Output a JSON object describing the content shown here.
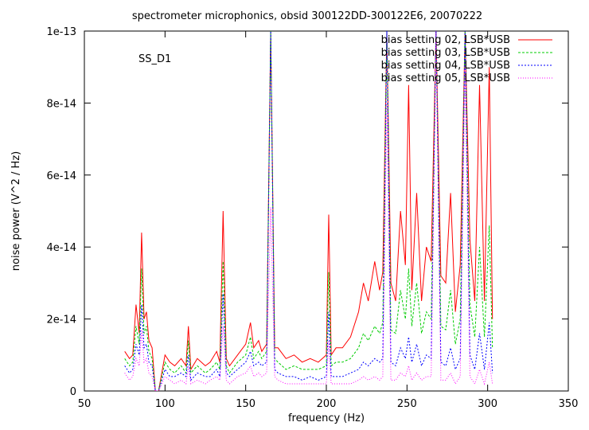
{
  "chart_data": {
    "type": "line",
    "title": "spectrometer microphonics, obsid 300122DD-300122E6, 20070222",
    "xlabel": "frequency (Hz)",
    "ylabel": "noise power (V^2 / Hz)",
    "annotation": "SS_D1",
    "xlim": [
      50,
      350
    ],
    "ylim": [
      0,
      1e-13
    ],
    "xticks": [
      50,
      100,
      150,
      200,
      250,
      300,
      350
    ],
    "xtick_labels": [
      "50",
      "100",
      "150",
      "200",
      "250",
      "300",
      "350"
    ],
    "yticks": [
      0,
      2e-14,
      4e-14,
      6e-14,
      8e-14,
      1e-13
    ],
    "ytick_labels": [
      "0",
      "2e-14",
      "4e-14",
      "6e-14",
      "8e-14",
      "1e-13"
    ],
    "grid": false,
    "legend_position": "top-right",
    "x": [
      75,
      78,
      80,
      82,
      84,
      85.5,
      87,
      88.5,
      90,
      92,
      94,
      96,
      100,
      103,
      106,
      110,
      113,
      114.5,
      116,
      120,
      125,
      128,
      132,
      134,
      136,
      138,
      140,
      145,
      150,
      153,
      155,
      158,
      160,
      163,
      165.5,
      168,
      170,
      175,
      180,
      185,
      190,
      195,
      200,
      201.5,
      203,
      206,
      210,
      215,
      220,
      223,
      226,
      230,
      233,
      235,
      237.5,
      240,
      243,
      246,
      249,
      251,
      253,
      256,
      259,
      262,
      265,
      268,
      271,
      274,
      277,
      280,
      283,
      286,
      289,
      292,
      295,
      298,
      301,
      303
    ],
    "series": [
      {
        "name": "bias setting 02, LSB*USB",
        "color": "#ff0000",
        "dash": "",
        "values": [
          1.1e-14,
          9e-15,
          1e-14,
          2.4e-14,
          1.6e-14,
          4.4e-14,
          2e-14,
          2.2e-14,
          1.4e-14,
          1.2e-14,
          0.0,
          0.0,
          1e-14,
          8e-15,
          7e-15,
          9e-15,
          7e-15,
          1.8e-14,
          6e-15,
          9e-15,
          7e-15,
          8e-15,
          1.1e-14,
          8e-15,
          5e-14,
          9e-15,
          7e-15,
          1e-14,
          1.3e-14,
          1.9e-14,
          1.2e-14,
          1.4e-14,
          1.1e-14,
          1.3e-14,
          1e-13,
          1.2e-14,
          1.2e-14,
          9e-15,
          1e-14,
          8e-15,
          9e-15,
          8e-15,
          1e-14,
          4.9e-14,
          1e-14,
          1.2e-14,
          1.2e-14,
          1.5e-14,
          2.2e-14,
          3e-14,
          2.5e-14,
          3.6e-14,
          2.8e-14,
          3.3e-14,
          1e-13,
          3e-14,
          2.5e-14,
          5e-14,
          3.5e-14,
          8.5e-14,
          2.8e-14,
          5.5e-14,
          2.5e-14,
          4e-14,
          3.6e-14,
          1e-13,
          3.2e-14,
          3e-14,
          5.5e-14,
          2.2e-14,
          3.5e-14,
          1e-13,
          4.2e-14,
          2.5e-14,
          8.5e-14,
          2.5e-14,
          9e-14,
          2e-14
        ]
      },
      {
        "name": "bias setting 03, LSB*USB",
        "color": "#00cc00",
        "dash": "3,2",
        "values": [
          9e-15,
          7e-15,
          8e-15,
          1.8e-14,
          1.3e-14,
          3.4e-14,
          1.6e-14,
          1.8e-14,
          1.1e-14,
          9e-15,
          0.0,
          0.0,
          8e-15,
          6e-15,
          5e-15,
          7e-15,
          5e-15,
          1.4e-14,
          5e-15,
          7e-15,
          5e-15,
          6e-15,
          8e-15,
          6e-15,
          3.6e-14,
          7e-15,
          5e-15,
          8e-15,
          1e-14,
          1.5e-14,
          9e-15,
          1.1e-14,
          9e-15,
          1.1e-14,
          1e-13,
          9e-15,
          8e-15,
          6e-15,
          7e-15,
          6e-15,
          6e-15,
          6e-15,
          7e-15,
          3.3e-14,
          7e-15,
          8e-15,
          8e-15,
          9e-15,
          1.2e-14,
          1.6e-14,
          1.4e-14,
          1.8e-14,
          1.6e-14,
          1.9e-14,
          1e-13,
          1.7e-14,
          1.6e-14,
          2.8e-14,
          2e-14,
          3.4e-14,
          1.8e-14,
          3e-14,
          1.6e-14,
          2.2e-14,
          2e-14,
          1e-13,
          1.8e-14,
          1.7e-14,
          2.8e-14,
          1.3e-14,
          2e-14,
          1e-13,
          2.4e-14,
          1.5e-14,
          4e-14,
          1.5e-14,
          4.6e-14,
          1.2e-14
        ]
      },
      {
        "name": "bias setting 04, LSB*USB",
        "color": "#0000ff",
        "dash": "2,2",
        "values": [
          7e-15,
          5e-15,
          6e-15,
          1.3e-14,
          1e-14,
          2.4e-14,
          1.2e-14,
          1.3e-14,
          8e-15,
          7e-15,
          0.0,
          0.0,
          6e-15,
          4e-15,
          4e-15,
          5e-15,
          4e-15,
          1e-14,
          3e-15,
          5e-15,
          4e-15,
          4e-15,
          6e-15,
          4e-15,
          2.7e-14,
          5e-15,
          4e-15,
          6e-15,
          8e-15,
          1.1e-14,
          7e-15,
          8e-15,
          7e-15,
          8e-15,
          1e-13,
          6e-15,
          5e-15,
          4e-15,
          4e-15,
          3e-15,
          4e-15,
          3e-15,
          4e-15,
          2.2e-14,
          4e-15,
          4e-15,
          4e-15,
          5e-15,
          6e-15,
          8e-15,
          7e-15,
          9e-15,
          8e-15,
          9e-15,
          1e-13,
          8e-15,
          7e-15,
          1.2e-14,
          9e-15,
          1.5e-14,
          8e-15,
          1.3e-14,
          7e-15,
          1e-14,
          9e-15,
          1e-13,
          8e-15,
          7e-15,
          1.2e-14,
          6e-15,
          9e-15,
          1e-13,
          1e-14,
          6e-15,
          1.6e-14,
          6e-15,
          1.9e-14,
          5e-15
        ]
      },
      {
        "name": "bias setting 05, LSB*USB",
        "color": "#ff00ff",
        "dash": "1,2",
        "values": [
          5e-15,
          3e-15,
          4e-15,
          9e-15,
          7e-15,
          1.7e-14,
          8e-15,
          9e-15,
          5e-15,
          4e-15,
          0.0,
          0.0,
          4e-15,
          3e-15,
          2e-15,
          3e-15,
          2e-15,
          7e-15,
          2e-15,
          3e-15,
          2e-15,
          3e-15,
          4e-15,
          3e-15,
          1.8e-14,
          3e-15,
          2e-15,
          4e-15,
          5e-15,
          7e-15,
          4e-15,
          5e-15,
          4e-15,
          5e-15,
          5.1e-14,
          4e-15,
          3e-15,
          2e-15,
          2e-15,
          2e-15,
          2e-15,
          2e-15,
          2e-15,
          1.4e-14,
          2e-15,
          2e-15,
          2e-15,
          2e-15,
          3e-15,
          4e-15,
          3e-15,
          4e-15,
          3e-15,
          4e-15,
          8e-14,
          3e-15,
          3e-15,
          5e-15,
          4e-15,
          7e-15,
          3e-15,
          5e-15,
          3e-15,
          4e-15,
          4e-15,
          1e-13,
          3e-15,
          3e-15,
          5e-15,
          2e-15,
          4e-15,
          9e-14,
          4e-15,
          2e-15,
          6e-15,
          2e-15,
          8e-15,
          2e-15
        ]
      }
    ]
  }
}
